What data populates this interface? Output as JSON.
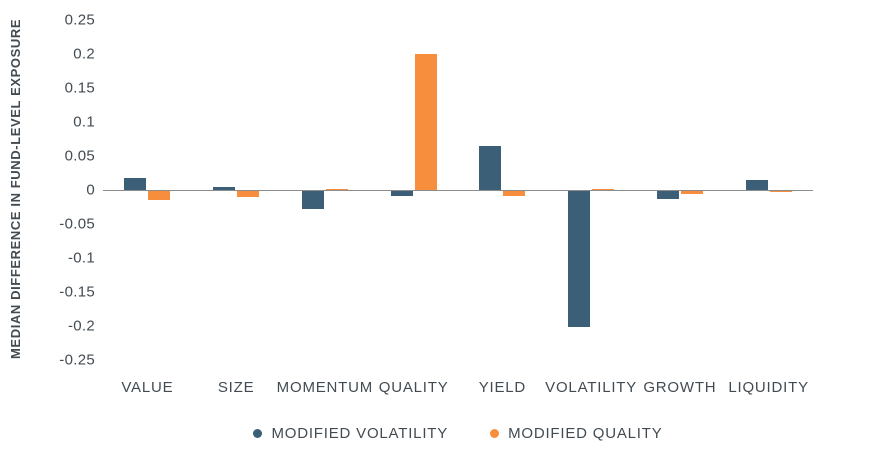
{
  "chart_data": {
    "type": "bar",
    "title": "",
    "xlabel": "",
    "ylabel": "MEDIAN DIFFERENCE IN FUND-LEVEL EXPOSURE",
    "categories": [
      "VALUE",
      "SIZE",
      "MOMENTUM",
      "QUALITY",
      "YIELD",
      "VOLATILITY",
      "GROWTH",
      "LIQUIDITY"
    ],
    "series": [
      {
        "name": "MODIFIED VOLATILITY",
        "color": "#3A5F76",
        "values": [
          0.018,
          0.005,
          -0.026,
          -0.007,
          0.065,
          -0.2,
          -0.012,
          0.014
        ]
      },
      {
        "name": "MODIFIED QUALITY",
        "color": "#F78E3D",
        "values": [
          -0.013,
          -0.009,
          0.002,
          0.2,
          -0.008,
          0.002,
          -0.005,
          -0.002
        ]
      }
    ],
    "ylim": [
      -0.25,
      0.25
    ],
    "ytick_labels": [
      "0.25",
      "0.2",
      "0.15",
      "0.1",
      "0.05",
      "0",
      "-0.05",
      "-0.1",
      "-0.15",
      "-0.2",
      "-0.25"
    ],
    "grid": false,
    "legend_position": "bottom",
    "axis_line_color": "#8C8C8C",
    "text_color": "#424B52"
  }
}
